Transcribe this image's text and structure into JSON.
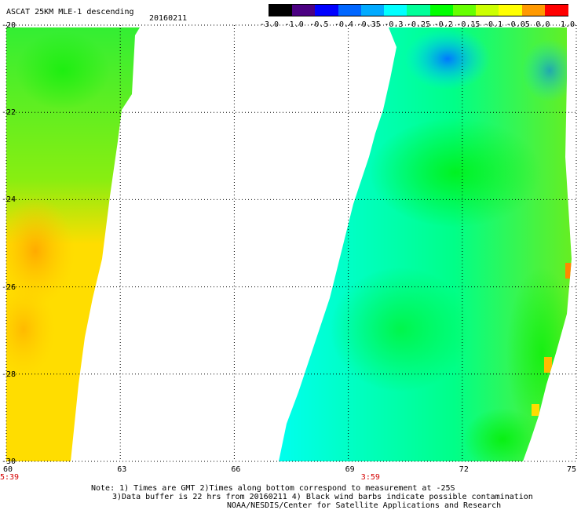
{
  "header": {
    "title": "ASCAT 25KM MLE-1 descending",
    "date": "20160211"
  },
  "colorbar": {
    "labels": [
      "-3.0",
      "-1.0",
      "-0.5",
      "-0.4",
      "-0.35",
      "-0.3",
      "-0.25",
      "-0.2",
      "-0.15",
      "-0.1",
      "-0.05",
      "0.0",
      "1.0"
    ],
    "colors": [
      "#000000",
      "#4b0082",
      "#0000ff",
      "#0066ff",
      "#00aaff",
      "#00ffff",
      "#00ff99",
      "#00ff00",
      "#66ff00",
      "#ccff00",
      "#ffff00",
      "#ff9900",
      "#ff0000"
    ]
  },
  "map": {
    "lat_labels": [
      "-20",
      "-22",
      "-24",
      "-26",
      "-28",
      "-30"
    ],
    "lon_labels": [
      "60",
      "63",
      "66",
      "69",
      "72",
      "75"
    ],
    "pass_times": [
      {
        "label": "5:39",
        "lon": 60
      },
      {
        "label": "3:59",
        "lon": 69.5
      }
    ]
  },
  "notes": {
    "line1": "Note: 1) Times are GMT 2)Times along bottom correspond to measurement at -25S",
    "line2": "3)Data buffer is 22 hrs from 20160211 4) Black wind barbs indicate possible contamination",
    "line3": "NOAA/NESDIS/Center for Satellite Applications and Research"
  }
}
